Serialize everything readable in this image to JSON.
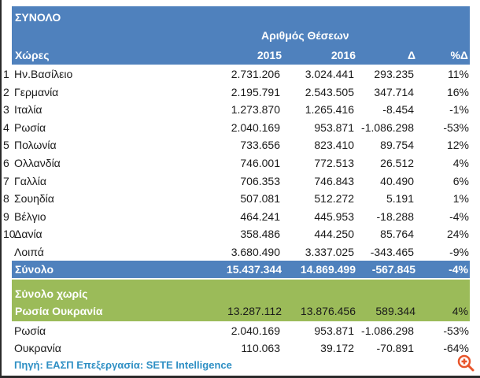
{
  "header": {
    "title": "ΣΥΝΟΛΟ",
    "subtitle": "Αριθμός Θέσεων",
    "columns": [
      "Χώρες",
      "2015",
      "2016",
      "Δ",
      "%Δ"
    ]
  },
  "rows": [
    {
      "rank": "1",
      "name": "Ην.Βασίλειο",
      "y2015": "2.731.206",
      "y2016": "3.024.441",
      "delta": "293.235",
      "pct": "11%"
    },
    {
      "rank": "2",
      "name": "Γερμανία",
      "y2015": "2.195.791",
      "y2016": "2.543.505",
      "delta": "347.714",
      "pct": "16%"
    },
    {
      "rank": "3",
      "name": "Ιταλία",
      "y2015": "1.273.870",
      "y2016": "1.265.416",
      "delta": "-8.454",
      "pct": "-1%"
    },
    {
      "rank": "4",
      "name": "Ρωσία",
      "y2015": "2.040.169",
      "y2016": "953.871",
      "delta": "-1.086.298",
      "pct": "-53%"
    },
    {
      "rank": "5",
      "name": "Πολωνία",
      "y2015": "733.656",
      "y2016": "823.410",
      "delta": "89.754",
      "pct": "12%"
    },
    {
      "rank": "6",
      "name": "Ολλανδία",
      "y2015": "746.001",
      "y2016": "772.513",
      "delta": "26.512",
      "pct": "4%"
    },
    {
      "rank": "7",
      "name": "Γαλλία",
      "y2015": "706.353",
      "y2016": "746.843",
      "delta": "40.490",
      "pct": "6%"
    },
    {
      "rank": "8",
      "name": "Σουηδία",
      "y2015": "507.081",
      "y2016": "512.272",
      "delta": "5.191",
      "pct": "1%"
    },
    {
      "rank": "9",
      "name": "Βέλγιο",
      "y2015": "464.241",
      "y2016": "445.953",
      "delta": "-18.288",
      "pct": "-4%"
    },
    {
      "rank": "10",
      "name": "Δανία",
      "y2015": "358.486",
      "y2016": "444.250",
      "delta": "85.764",
      "pct": "24%"
    },
    {
      "rank": "",
      "name": "Λοιπά",
      "y2015": "3.680.490",
      "y2016": "3.337.025",
      "delta": "-343.465",
      "pct": "-9%"
    }
  ],
  "total": {
    "name": "Σύνολο",
    "y2015": "15.437.344",
    "y2016": "14.869.499",
    "delta": "-567.845",
    "pct": "-4%"
  },
  "excl": {
    "line1": "Σύνολο χωρίς",
    "line2": "Ρωσία Ουκρανία",
    "y2015": "13.287.112",
    "y2016": "13.876.456",
    "delta": "589.344",
    "pct": "4%"
  },
  "extra_rows": [
    {
      "name": "Ρωσία",
      "y2015": "2.040.169",
      "y2016": "953.871",
      "delta": "-1.086.298",
      "pct": "-53%"
    },
    {
      "name": "Ουκρανία",
      "y2015": "110.063",
      "y2016": "39.172",
      "delta": "-70.891",
      "pct": "-64%"
    }
  ],
  "source": "Πηγή: ΕΑΣΠ  Επεξεργασία: SETE Intelligence",
  "icons": {
    "zoom": "zoom-in-icon"
  },
  "colors": {
    "header_blue": "#4f81bd",
    "green": "#9bbb59",
    "source_blue": "#2e8fc4",
    "zoom_orange": "#e8552b"
  }
}
